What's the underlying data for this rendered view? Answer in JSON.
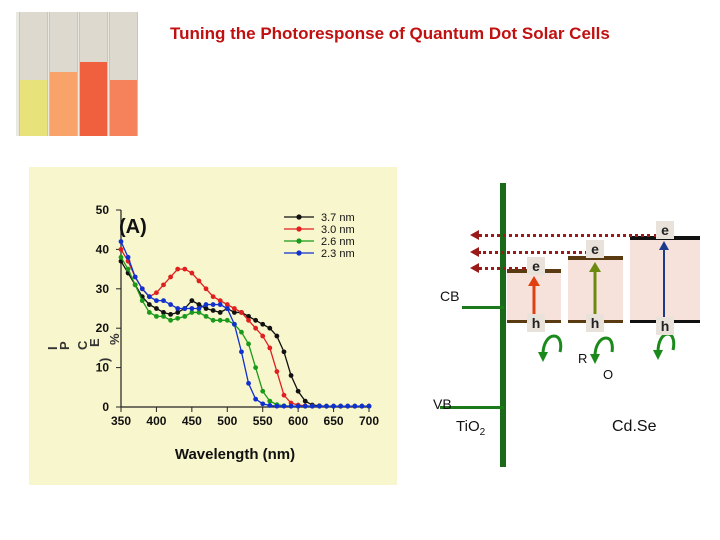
{
  "title": "Tuning the Photoresponse of Quantum Dot Solar Cells",
  "vials": [
    {
      "color": "#e8e27a",
      "liquid_fraction": 0.45
    },
    {
      "color": "#f9a36a",
      "liquid_fraction": 0.52
    },
    {
      "color": "#f0603e",
      "liquid_fraction": 0.6
    },
    {
      "color": "#f5825a",
      "liquid_fraction": 0.45
    }
  ],
  "chart_data": {
    "type": "line",
    "panel_label": "(A)",
    "xlabel": "Wavelength (nm)",
    "ylabel_fragments": [
      "I",
      "P",
      "C",
      "E",
      "%",
      ")"
    ],
    "xlim": [
      350,
      700
    ],
    "ylim": [
      0,
      50
    ],
    "xticks": [
      "350",
      "400",
      "450",
      "500",
      "550",
      "600",
      "650",
      "700"
    ],
    "yticks": [
      "0",
      "10",
      "20",
      "30",
      "40",
      "50"
    ],
    "legend_position": "top-right",
    "series": [
      {
        "name": "3.7 nm",
        "color": "#111111",
        "x": [
          350,
          360,
          370,
          380,
          390,
          400,
          410,
          420,
          430,
          440,
          450,
          460,
          470,
          480,
          490,
          500,
          510,
          520,
          530,
          540,
          550,
          560,
          570,
          580,
          590,
          600,
          610,
          620,
          630,
          640,
          650,
          660,
          670,
          680,
          690,
          700
        ],
        "y": [
          37,
          34,
          31,
          28,
          26,
          25,
          24,
          23.5,
          24,
          25,
          27,
          26,
          25,
          24.5,
          24,
          25,
          24,
          24,
          23,
          22,
          21,
          20,
          18,
          14,
          8,
          4,
          1.5,
          0.5,
          0.3,
          0.2,
          0.2,
          0.2,
          0.2,
          0.2,
          0.2,
          0.2
        ]
      },
      {
        "name": "3.0 nm",
        "color": "#e02020",
        "x": [
          350,
          360,
          370,
          380,
          390,
          400,
          410,
          420,
          430,
          440,
          450,
          460,
          470,
          480,
          490,
          500,
          510,
          520,
          530,
          540,
          550,
          560,
          570,
          580,
          590,
          600,
          610,
          620,
          630,
          640,
          650,
          660,
          670,
          680,
          690,
          700
        ],
        "y": [
          40,
          37,
          33,
          30,
          28,
          29,
          31,
          33,
          35,
          35,
          34,
          32,
          30,
          28,
          27,
          26,
          25,
          24,
          22,
          20,
          18,
          15,
          9,
          3,
          1,
          0.5,
          0.3,
          0.2,
          0.2,
          0.2,
          0.2,
          0.2,
          0.2,
          0.2,
          0.2,
          0.2
        ]
      },
      {
        "name": "2.6 nm",
        "color": "#1a9a1a",
        "x": [
          350,
          360,
          370,
          380,
          390,
          400,
          410,
          420,
          430,
          440,
          450,
          460,
          470,
          480,
          490,
          500,
          510,
          520,
          530,
          540,
          550,
          560,
          570,
          580,
          590,
          600,
          610,
          620,
          630,
          640,
          650,
          660,
          670,
          680,
          690,
          700
        ],
        "y": [
          38,
          35,
          31,
          27,
          24,
          23,
          23,
          22,
          22.5,
          23,
          24,
          24,
          23,
          22,
          22,
          22,
          21,
          19,
          16,
          10,
          4,
          1.5,
          0.6,
          0.3,
          0.2,
          0.2,
          0.2,
          0.2,
          0.2,
          0.2,
          0.2,
          0.2,
          0.2,
          0.2,
          0.2,
          0.2
        ]
      },
      {
        "name": "2.3 nm",
        "color": "#1030d0",
        "x": [
          350,
          360,
          370,
          380,
          390,
          400,
          410,
          420,
          430,
          440,
          450,
          460,
          470,
          480,
          490,
          500,
          510,
          520,
          530,
          540,
          550,
          560,
          570,
          580,
          590,
          600,
          610,
          620,
          630,
          640,
          650,
          660,
          670,
          680,
          690,
          700
        ],
        "y": [
          42,
          38,
          33,
          30,
          28,
          27,
          27,
          26,
          25,
          25,
          25,
          25,
          26,
          26,
          26,
          25,
          21,
          14,
          6,
          2,
          0.8,
          0.4,
          0.2,
          0.2,
          0.2,
          0.2,
          0.2,
          0.2,
          0.2,
          0.2,
          0.2,
          0.2,
          0.2,
          0.2,
          0.2,
          0.2
        ]
      }
    ]
  },
  "diagram": {
    "cb_label": "CB",
    "vb_label": "VB",
    "tio2_label": "TiO",
    "tio2_sub": "2",
    "cdse_label": "Cd.Se",
    "r_label": "R",
    "o_label": "O",
    "electrons": [
      "e",
      "e",
      "e"
    ],
    "holes": [
      "h",
      "h",
      "h"
    ],
    "colors": {
      "tio2_line": "#1a7a1a",
      "cdse_line": "#5a3a10",
      "fill": "#f6e2da",
      "arrow": "#9a1a1a",
      "red_arrow": "#e04010",
      "green_arrow": "#1a8a1a"
    }
  }
}
